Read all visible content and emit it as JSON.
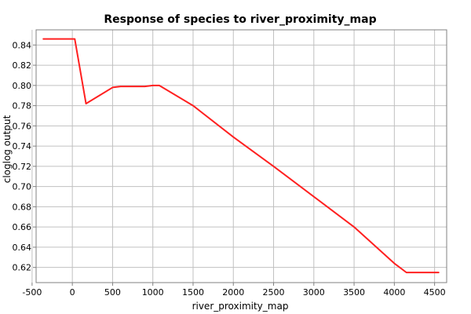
{
  "chart_data": {
    "type": "line",
    "title": "Response of species to river_proximity_map",
    "xlabel": "river_proximity_map",
    "ylabel": "cloglog output",
    "xlim": [
      -450,
      4650
    ],
    "ylim": [
      0.605,
      0.855
    ],
    "xticks": [
      -500,
      0,
      500,
      1000,
      1500,
      2000,
      2500,
      3000,
      3500,
      4000,
      4500
    ],
    "xtick_labels": [
      "-500",
      "0",
      "500",
      "1000",
      "1500",
      "2000",
      "2500",
      "3000",
      "3500",
      "4000",
      "4500"
    ],
    "yticks": [
      0.62,
      0.64,
      0.66,
      0.68,
      0.7,
      0.72,
      0.74,
      0.76,
      0.78,
      0.8,
      0.82,
      0.84
    ],
    "ytick_labels": [
      "0.62",
      "0.64",
      "0.66",
      "0.68",
      "0.70",
      "0.72",
      "0.74",
      "0.76",
      "0.78",
      "0.80",
      "0.82",
      "0.84"
    ],
    "grid": true,
    "line_color": "#ff2020",
    "grid_color": "#c0c0c0",
    "series": [
      {
        "x": [
          -360,
          30,
          170,
          500,
          600,
          700,
          800,
          900,
          1000,
          1080,
          1500,
          2000,
          2500,
          3000,
          3500,
          4000,
          4150,
          4550
        ],
        "y": [
          0.846,
          0.846,
          0.782,
          0.798,
          0.799,
          0.799,
          0.799,
          0.799,
          0.8,
          0.8,
          0.78,
          0.749,
          0.72,
          0.69,
          0.66,
          0.624,
          0.615,
          0.615
        ]
      }
    ]
  }
}
